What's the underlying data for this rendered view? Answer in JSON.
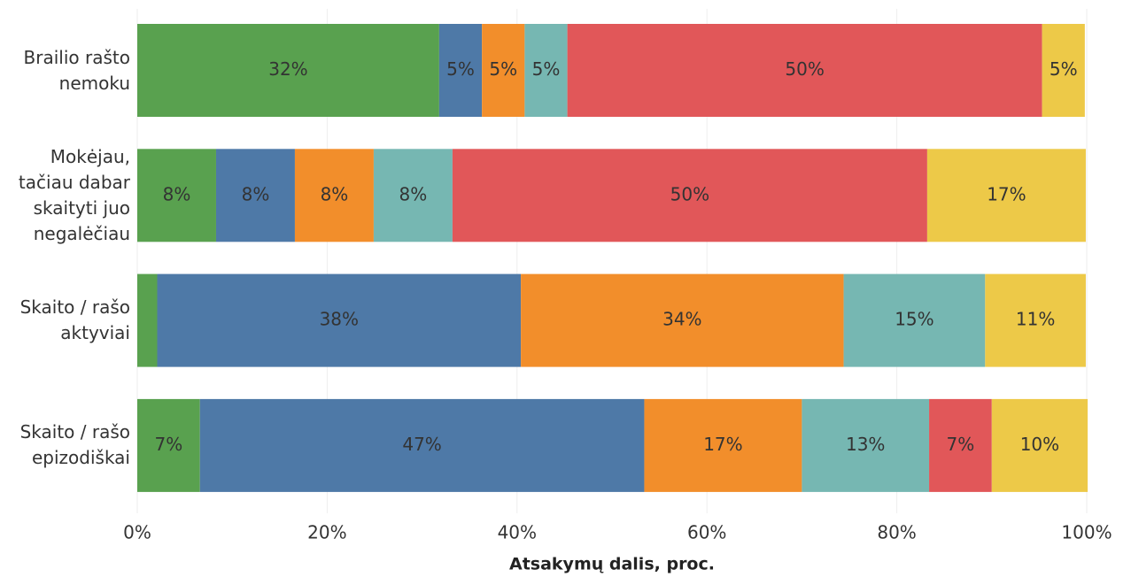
{
  "chart_data": {
    "type": "stacked-barh",
    "categories": [
      "Brailio rašto\nnemoku",
      "Mokėjau,\ntačiau dabar\nskaityti juo\nnegalėčiau",
      "Skaito / rašo\naktyviai",
      "Skaito / rašo\nepizodiškai"
    ],
    "series": [
      {
        "color": "#59a14f",
        "values": [
          31.8,
          8.3,
          2.1,
          6.6
        ],
        "value_labels": [
          "32%",
          "8%",
          null,
          "7%"
        ]
      },
      {
        "color": "#4e79a7",
        "values": [
          4.5,
          8.3,
          38.3,
          46.8
        ],
        "value_labels": [
          "5%",
          "8%",
          "38%",
          "47%"
        ]
      },
      {
        "color": "#f28e2b",
        "values": [
          4.5,
          8.3,
          34.0,
          16.6
        ],
        "value_labels": [
          "5%",
          "8%",
          "34%",
          "17%"
        ]
      },
      {
        "color": "#76b7b2",
        "values": [
          4.5,
          8.3,
          14.9,
          13.4
        ],
        "value_labels": [
          "5%",
          "8%",
          "15%",
          "13%"
        ]
      },
      {
        "color": "#e15759",
        "values": [
          50,
          50,
          0,
          6.6
        ],
        "value_labels": [
          "50%",
          "50%",
          null,
          "7%"
        ]
      },
      {
        "color": "#edc948",
        "values": [
          4.5,
          16.7,
          10.6,
          10.1
        ],
        "value_labels": [
          "5%",
          "17%",
          "11%",
          "10%"
        ]
      }
    ],
    "xlim": [
      0,
      100
    ],
    "xticks": [
      {
        "value": 0,
        "label": "0%"
      },
      {
        "value": 20,
        "label": "20%"
      },
      {
        "value": 40,
        "label": "40%"
      },
      {
        "value": 60,
        "label": "60%"
      },
      {
        "value": 80,
        "label": "80%"
      },
      {
        "value": 100,
        "label": "100%"
      }
    ],
    "xlabel": "Atsakymų dalis, proc.",
    "grid": true
  }
}
